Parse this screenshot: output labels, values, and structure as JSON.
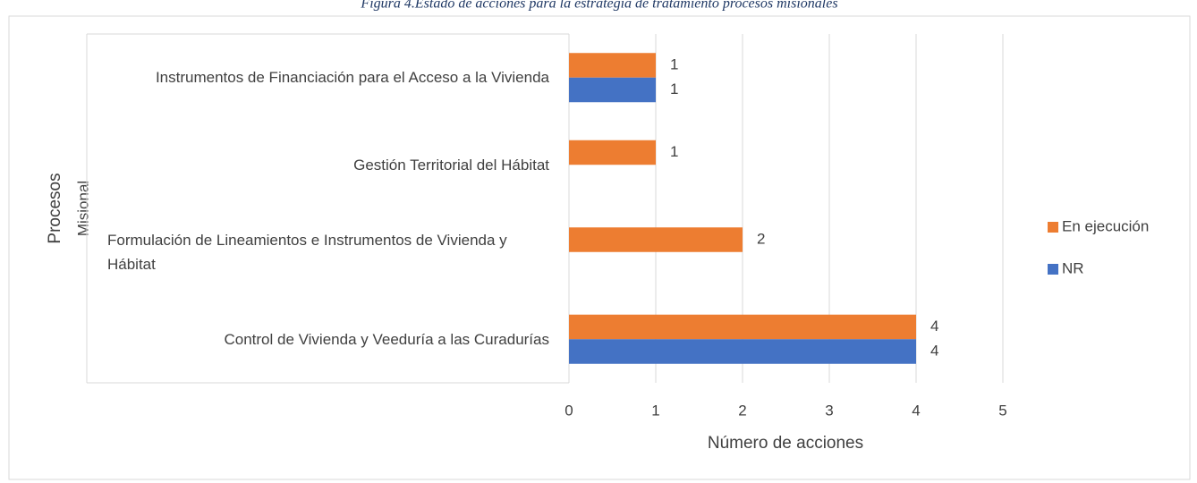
{
  "chart_data": {
    "type": "barh",
    "title": "Figura 4.Estado de acciones para la estrategia de tratamiento procesos misionales",
    "y_label": "Procesos",
    "group_label": "Misional",
    "x_label": "Número de acciones",
    "categories": [
      "Instrumentos de Financiación para el Acceso a la Vivienda",
      "Gestión Territorial del Hábitat",
      "Formulación de Lineamientos e Instrumentos de Vivienda y Hábitat",
      "Control de Vivienda y Veeduría a las Curadurías"
    ],
    "series": [
      {
        "name": "En ejecución",
        "color": "#ed7d31",
        "values": [
          1,
          1,
          2,
          4
        ]
      },
      {
        "name": "NR",
        "color": "#4472c4",
        "values": [
          1,
          null,
          null,
          4
        ]
      }
    ],
    "xlim": [
      0,
      5
    ],
    "xticks": [
      0,
      1,
      2,
      3,
      4,
      5
    ],
    "grid": true,
    "legend": "right"
  }
}
